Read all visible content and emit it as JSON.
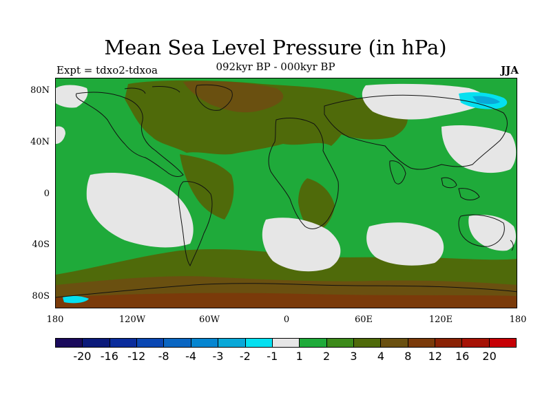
{
  "title": "Mean Sea Level Pressure (in hPa)",
  "subtitle": "092kyr BP - 000kyr BP",
  "left_label": "Expt = tdxo2-tdxoa",
  "right_label": "JJA",
  "lat_labels": [
    "80N",
    "40N",
    "0",
    "40S",
    "80S"
  ],
  "lon_labels": [
    "180",
    "120W",
    "60W",
    "0",
    "60E",
    "120E",
    "180"
  ],
  "colorbar": {
    "colors": [
      "#1a0a5c",
      "#0b1a7a",
      "#0a2c9c",
      "#0a47b3",
      "#0a66c2",
      "#0585d0",
      "#09a8d8",
      "#05e0f0",
      "#e6e6e6",
      "#1faa3a",
      "#3c8a1a",
      "#4f6a0a",
      "#6a5010",
      "#7a3a0a",
      "#8a2205",
      "#a61205",
      "#c60005"
    ],
    "labels": [
      "-20",
      "-16",
      "-12",
      "-8",
      "-4",
      "-3",
      "-2",
      "-1",
      "1",
      "2",
      "3",
      "4",
      "8",
      "12",
      "16",
      "20"
    ]
  },
  "legend": {
    "light_gray": "#e6e6e6",
    "green": "#1faa3a",
    "olive": "#4f6a0a",
    "brown": "#6a5010",
    "darkbrown": "#7a3a0a",
    "cyan": "#05e0f0",
    "blue": "#09a8d8",
    "coast": "#111111"
  }
}
